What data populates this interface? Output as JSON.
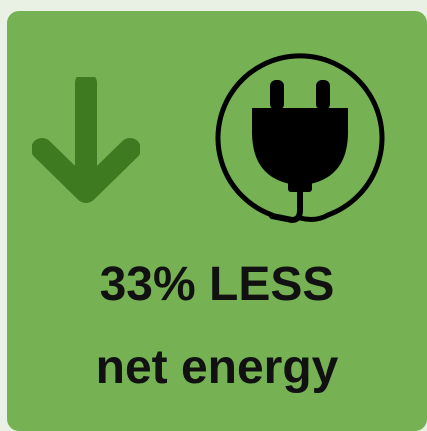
{
  "card": {
    "line1": "33% LESS",
    "line2": "net energy"
  },
  "icons": {
    "arrow": "down-arrow-icon",
    "plug": "power-plug-icon"
  },
  "colors": {
    "page_background": "#e9f1e4",
    "card_background": "#76b254",
    "arrow": "#3d7a20",
    "plug": "#000000",
    "text": "#111111"
  }
}
